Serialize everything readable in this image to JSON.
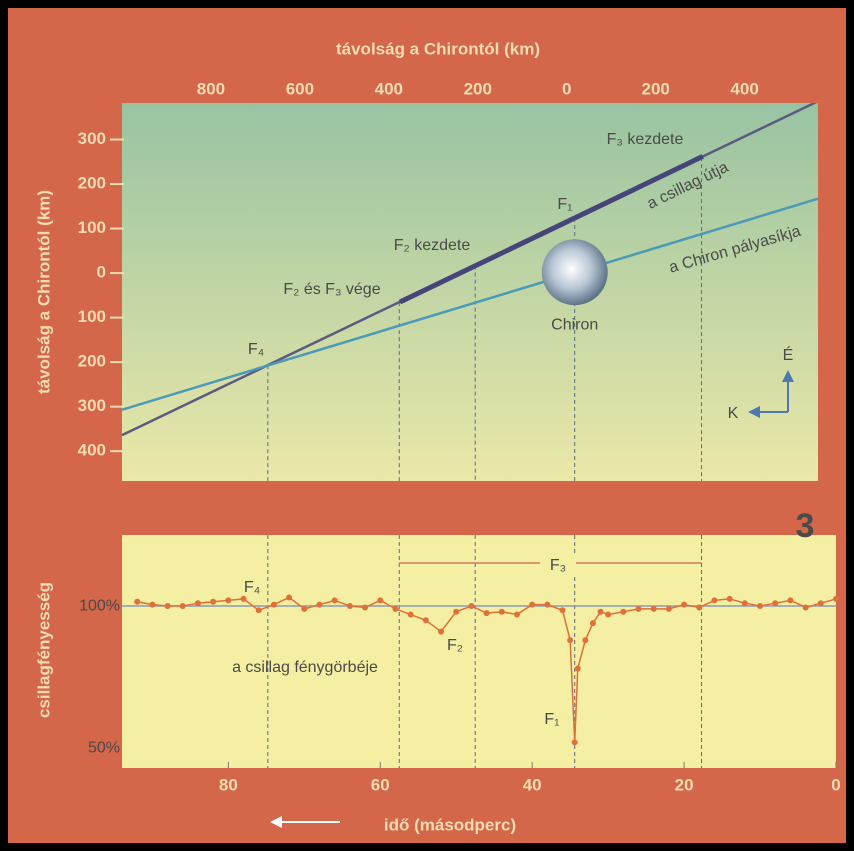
{
  "figure_number": "3",
  "chart_data": [
    {
      "type": "line",
      "x_label": "távolság a Chirontól (km)",
      "y_label": "távolság a Chirontól (km)",
      "xlim": [
        -1000,
        565
      ],
      "ylim": [
        -467,
        382
      ],
      "xticks": [
        {
          "value": -800,
          "label": "800"
        },
        {
          "value": -600,
          "label": "600"
        },
        {
          "value": -400,
          "label": "400"
        },
        {
          "value": -200,
          "label": "200"
        },
        0,
        200,
        400
      ],
      "yticks": [
        300,
        200,
        100,
        0,
        {
          "value": -100,
          "label": "100"
        },
        {
          "value": -200,
          "label": "200"
        },
        {
          "value": -300,
          "label": "300"
        },
        {
          "value": -400,
          "label": "400"
        }
      ],
      "series": [
        {
          "name": "a csillag útja",
          "color": "#5c5a80",
          "x": [
            -1000,
            565
          ],
          "values": [
            -364,
            386
          ]
        },
        {
          "name": "a Chiron pályasíkja",
          "color": "#4a9ab8",
          "x": [
            -1000,
            565
          ],
          "values": [
            -307,
            167
          ]
        }
      ],
      "highlight": {
        "color": "#46457a",
        "x": [
          -375,
          306
        ],
        "values": [
          -65,
          262
        ]
      },
      "body": {
        "label": "Chiron",
        "x": 18,
        "y": 2,
        "radius": 74
      },
      "annotations": [
        "F₃ kezdete",
        "F₁",
        "F₂ kezdete",
        "F₂ és F₃ vége",
        "F₄"
      ],
      "compass": {
        "north": "É",
        "east": "K"
      }
    },
    {
      "type": "line",
      "x_label": "idő (másodperc)",
      "y_label": "csillagfényesség",
      "xlim": [
        94,
        0
      ],
      "ylim": [
        43,
        125
      ],
      "xticks": [
        80,
        60,
        40,
        20,
        0
      ],
      "yticks": [
        {
          "value": 100,
          "label": "100%"
        },
        {
          "value": 50,
          "label": "50%"
        }
      ],
      "reference": 100,
      "series": [
        {
          "name": "a csillag fénygörbéje",
          "color": "#e07038",
          "x": [
            92,
            90,
            88,
            86,
            84,
            82,
            80,
            78,
            76,
            74,
            72,
            70,
            68,
            66,
            64,
            62,
            60,
            58,
            56,
            54,
            52,
            50,
            48,
            46,
            44,
            42,
            40,
            38,
            36,
            35,
            34.4,
            34,
            33,
            32,
            31,
            30,
            28,
            26,
            24,
            22,
            20,
            18,
            16,
            14,
            12,
            10,
            8,
            6,
            4,
            2,
            0
          ],
          "values": [
            101.5,
            100.5,
            100,
            100,
            101,
            101.5,
            102,
            102.5,
            98.5,
            100.5,
            103,
            99,
            100.5,
            102,
            100,
            99.5,
            102,
            99,
            97,
            95,
            91,
            98,
            100,
            97.5,
            98,
            97,
            100.5,
            100.5,
            98.5,
            88,
            52,
            78,
            88,
            94,
            98,
            97,
            98,
            99,
            99,
            99,
            100.5,
            99.5,
            102,
            102.5,
            101,
            100,
            101,
            102,
            99.5,
            101,
            102.5
          ]
        }
      ],
      "event_times": [
        74.8,
        57.5,
        47.5,
        34.4,
        17.7
      ],
      "annotations": [
        "F₄",
        "F₂",
        "F₁",
        "F₃"
      ]
    }
  ]
}
